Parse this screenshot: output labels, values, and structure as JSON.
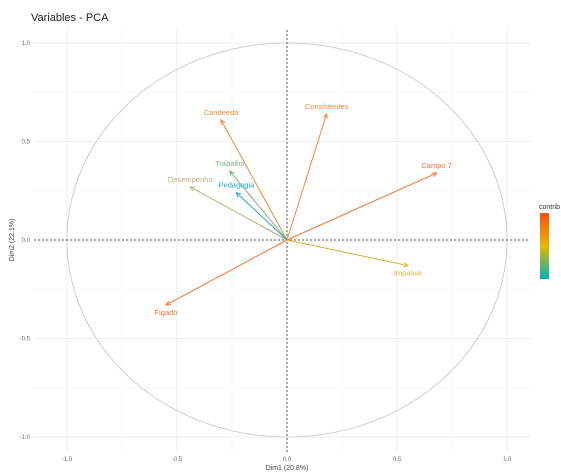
{
  "chart_data": {
    "type": "scatter",
    "title": "Variables - PCA",
    "xlabel": "Dim1 (20.8%)",
    "ylabel": "Dim2 (22.1%)",
    "xlim": [
      -1.0,
      1.0
    ],
    "ylim": [
      -1.0,
      1.0
    ],
    "x_ticks": [
      "-1.0",
      "-0.5",
      "0.0",
      "0.5",
      "1.0"
    ],
    "y_ticks": [
      "1.0",
      "0.5",
      "0.0",
      "-0.5",
      "-1.0"
    ],
    "grid": true,
    "unit_circle": true,
    "legend_title": "contrib",
    "legend_position": "right",
    "gradient_colors": [
      "#00AFBB",
      "#E7B800",
      "#FC4E07"
    ],
    "variables": [
      {
        "name": "Candeeda",
        "x": -0.3,
        "y": 0.61,
        "color": "#f08a3a"
      },
      {
        "name": "Consistentes",
        "x": 0.18,
        "y": 0.64,
        "color": "#f08a3a"
      },
      {
        "name": "Campo 7",
        "x": 0.68,
        "y": 0.34,
        "color": "#f5743a"
      },
      {
        "name": "Trabalho",
        "x": -0.26,
        "y": 0.35,
        "color": "#79b58c"
      },
      {
        "name": "Desempenho",
        "x": -0.44,
        "y": 0.27,
        "color": "#b7b17a"
      },
      {
        "name": "Pedagogia",
        "x": -0.23,
        "y": 0.24,
        "color": "#2fa7c7"
      },
      {
        "name": "Impasse",
        "x": 0.55,
        "y": -0.13,
        "color": "#d4b43a"
      },
      {
        "name": "Figado",
        "x": -0.55,
        "y": -0.33,
        "color": "#f5743a"
      }
    ]
  }
}
